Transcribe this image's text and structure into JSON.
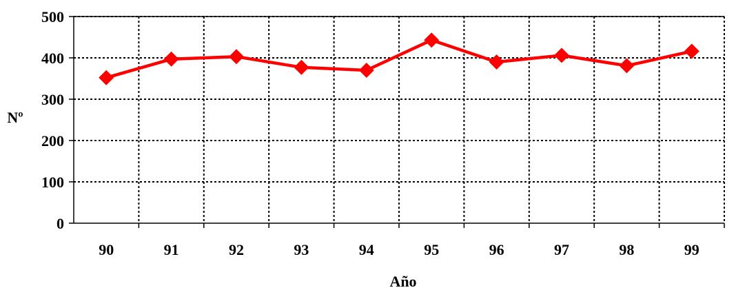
{
  "chart_data": {
    "type": "line",
    "title": "",
    "xlabel": "Año",
    "ylabel": "Nº",
    "categories": [
      "90",
      "91",
      "92",
      "93",
      "94",
      "95",
      "96",
      "97",
      "98",
      "99"
    ],
    "series": [
      {
        "values": [
          352,
          397,
          403,
          377,
          370,
          443,
          390,
          406,
          381,
          416
        ],
        "color": "#ff0000",
        "marker": "diamond"
      }
    ],
    "ylim": [
      0,
      500
    ],
    "yticks": [
      "0",
      "100",
      "200",
      "300",
      "400",
      "500"
    ],
    "grid": true,
    "grid_style": "dotted",
    "legend": "none"
  }
}
